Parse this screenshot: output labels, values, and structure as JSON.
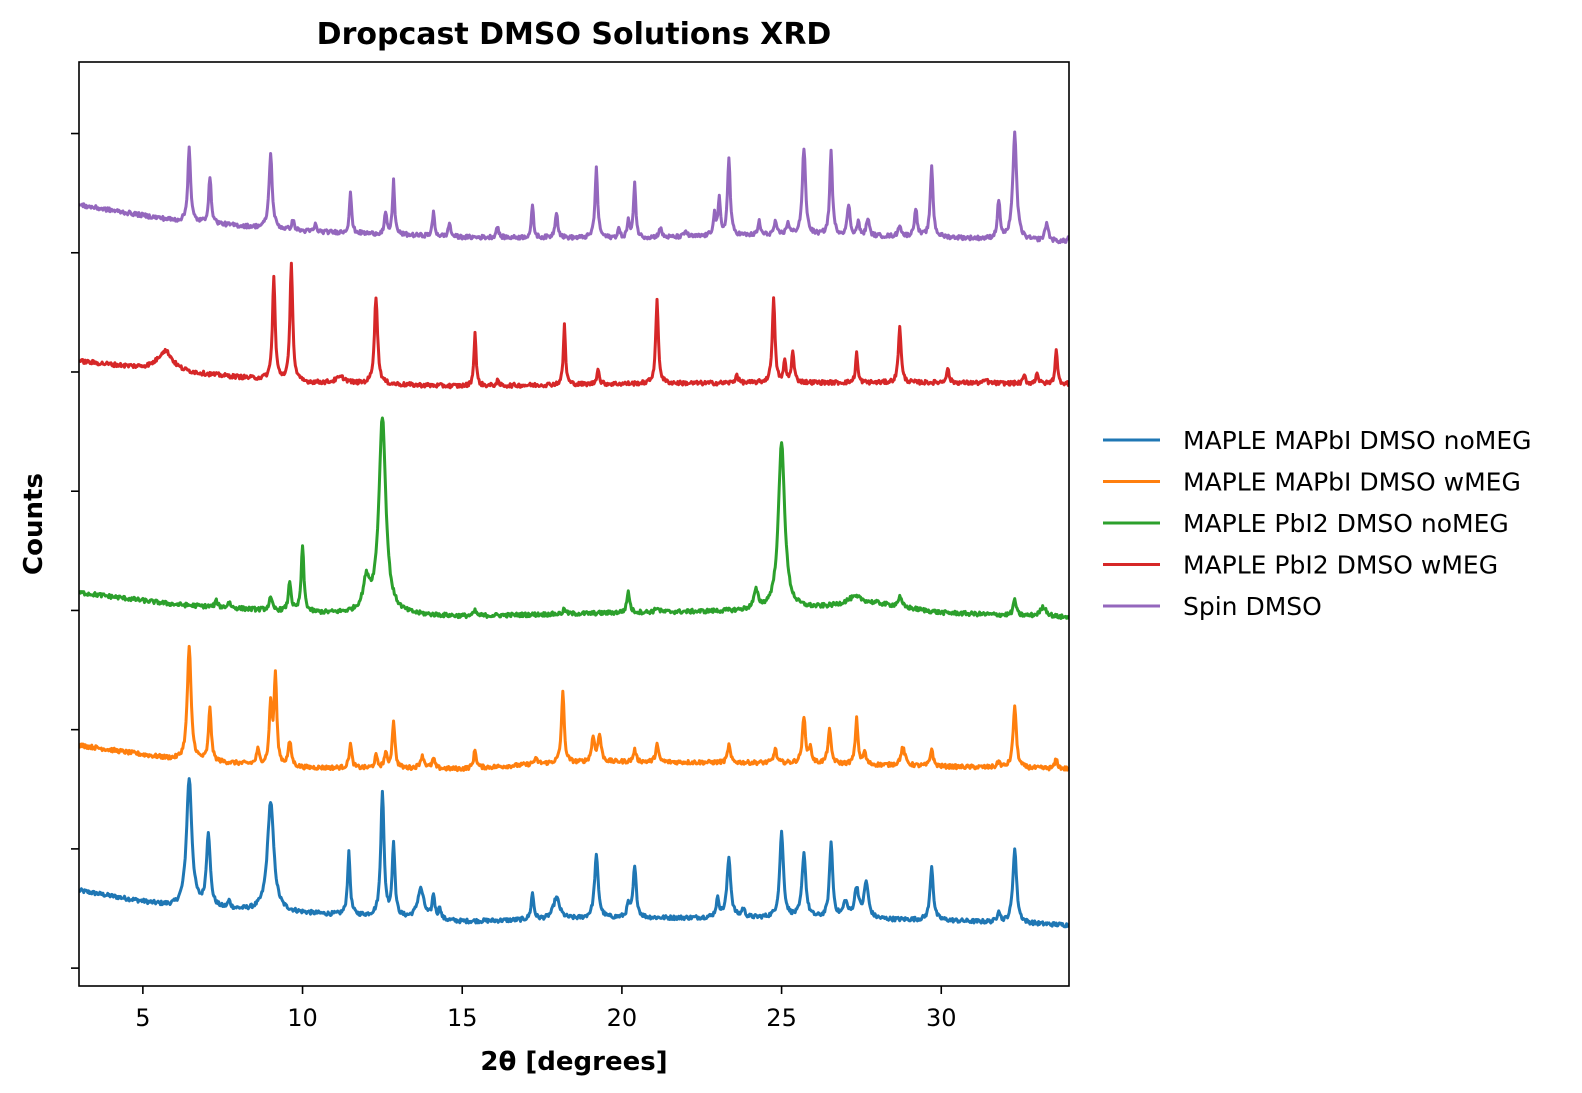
{
  "chart_data": {
    "type": "line",
    "title": "Dropcast DMSO Solutions XRD",
    "xlabel": "2θ [degrees]",
    "ylabel": "Counts",
    "xlim": [
      3,
      34
    ],
    "ylim": [
      -0.15,
      7.6
    ],
    "x_ticks": [
      5,
      10,
      15,
      20,
      25,
      30
    ],
    "y_ticks": [
      0,
      1,
      2,
      3,
      4,
      5,
      6,
      7
    ],
    "y_tick_labels_visible": false,
    "grid": false,
    "legend_position": "right, outside plot",
    "series": [
      {
        "name": "MAPLE MAPbI DMSO noMEG",
        "color": "#1f77b4",
        "offset": 0.55,
        "baseline": [
          [
            3,
            0.1
          ],
          [
            6,
            -0.04
          ],
          [
            10,
            -0.09
          ],
          [
            15,
            -0.16
          ],
          [
            20,
            -0.13
          ],
          [
            25,
            -0.13
          ],
          [
            30,
            -0.15
          ],
          [
            34,
            -0.19
          ]
        ],
        "peaks": [
          [
            6.45,
            1.08,
            0.1
          ],
          [
            7.05,
            0.62,
            0.07
          ],
          [
            7.7,
            0.06,
            0.05
          ],
          [
            9.0,
            0.92,
            0.12
          ],
          [
            11.45,
            0.52,
            0.05
          ],
          [
            12.5,
            1.05,
            0.06
          ],
          [
            12.85,
            0.62,
            0.05
          ],
          [
            13.7,
            0.25,
            0.12
          ],
          [
            14.1,
            0.2,
            0.05
          ],
          [
            14.3,
            0.1,
            0.04
          ],
          [
            17.2,
            0.22,
            0.05
          ],
          [
            17.95,
            0.18,
            0.12
          ],
          [
            19.2,
            0.52,
            0.07
          ],
          [
            20.2,
            0.1,
            0.05
          ],
          [
            20.4,
            0.42,
            0.06
          ],
          [
            23.0,
            0.15,
            0.06
          ],
          [
            23.35,
            0.5,
            0.07
          ],
          [
            23.8,
            0.07,
            0.06
          ],
          [
            25.0,
            0.71,
            0.07
          ],
          [
            25.7,
            0.54,
            0.07
          ],
          [
            26.55,
            0.63,
            0.06
          ],
          [
            27.0,
            0.13,
            0.08
          ],
          [
            27.35,
            0.25,
            0.08
          ],
          [
            27.65,
            0.3,
            0.08
          ],
          [
            29.7,
            0.45,
            0.06
          ],
          [
            31.8,
            0.1,
            0.05
          ],
          [
            32.3,
            0.62,
            0.07
          ]
        ]
      },
      {
        "name": "MAPLE MAPbI DMSO wMEG",
        "color": "#ff7f0e",
        "offset": 1.75,
        "baseline": [
          [
            3,
            0.12
          ],
          [
            6,
            0.0
          ],
          [
            10,
            -0.07
          ],
          [
            15,
            -0.08
          ],
          [
            18,
            -0.03
          ],
          [
            20,
            -0.02
          ],
          [
            25,
            -0.03
          ],
          [
            30,
            -0.06
          ],
          [
            34,
            -0.08
          ]
        ],
        "peaks": [
          [
            6.45,
            0.95,
            0.07
          ],
          [
            7.1,
            0.45,
            0.05
          ],
          [
            8.6,
            0.12,
            0.05
          ],
          [
            9.0,
            0.5,
            0.05
          ],
          [
            9.15,
            0.75,
            0.05
          ],
          [
            9.6,
            0.2,
            0.06
          ],
          [
            11.5,
            0.2,
            0.05
          ],
          [
            12.3,
            0.1,
            0.05
          ],
          [
            12.6,
            0.12,
            0.05
          ],
          [
            12.85,
            0.4,
            0.05
          ],
          [
            13.75,
            0.1,
            0.08
          ],
          [
            14.1,
            0.08,
            0.05
          ],
          [
            15.4,
            0.15,
            0.05
          ],
          [
            17.3,
            0.04,
            0.08
          ],
          [
            18.15,
            0.6,
            0.05
          ],
          [
            19.1,
            0.2,
            0.06
          ],
          [
            19.3,
            0.22,
            0.06
          ],
          [
            20.4,
            0.1,
            0.05
          ],
          [
            21.1,
            0.15,
            0.05
          ],
          [
            23.35,
            0.15,
            0.05
          ],
          [
            24.8,
            0.12,
            0.05
          ],
          [
            25.7,
            0.38,
            0.06
          ],
          [
            25.9,
            0.12,
            0.05
          ],
          [
            26.5,
            0.28,
            0.06
          ],
          [
            27.35,
            0.38,
            0.05
          ],
          [
            27.6,
            0.1,
            0.05
          ],
          [
            28.8,
            0.15,
            0.08
          ],
          [
            29.7,
            0.15,
            0.05
          ],
          [
            31.8,
            0.05,
            0.05
          ],
          [
            32.3,
            0.52,
            0.06
          ],
          [
            33.6,
            0.08,
            0.05
          ]
        ]
      },
      {
        "name": "MAPLE PbI2 DMSO noMEG",
        "color": "#2ca02c",
        "offset": 3.0,
        "baseline": [
          [
            3,
            0.15
          ],
          [
            6,
            0.05
          ],
          [
            10,
            -0.02
          ],
          [
            15,
            -0.05
          ],
          [
            20,
            -0.02
          ],
          [
            25,
            0.0
          ],
          [
            28,
            0.05
          ],
          [
            30,
            -0.02
          ],
          [
            34,
            -0.06
          ]
        ],
        "peaks": [
          [
            7.3,
            0.05,
            0.05
          ],
          [
            7.7,
            0.05,
            0.05
          ],
          [
            9.0,
            0.1,
            0.06
          ],
          [
            9.6,
            0.25,
            0.05
          ],
          [
            10.0,
            0.55,
            0.05
          ],
          [
            12.0,
            0.25,
            0.12
          ],
          [
            12.5,
            1.65,
            0.13
          ],
          [
            15.4,
            0.04,
            0.05
          ],
          [
            18.2,
            0.04,
            0.05
          ],
          [
            20.2,
            0.18,
            0.05
          ],
          [
            21.1,
            0.04,
            0.06
          ],
          [
            24.2,
            0.15,
            0.08
          ],
          [
            25.0,
            1.4,
            0.12
          ],
          [
            27.3,
            0.07,
            0.35
          ],
          [
            28.7,
            0.08,
            0.07
          ],
          [
            32.3,
            0.14,
            0.05
          ],
          [
            33.2,
            0.08,
            0.12
          ]
        ]
      },
      {
        "name": "MAPLE PbI2 DMSO wMEG",
        "color": "#d62728",
        "offset": 4.95,
        "baseline": [
          [
            3,
            0.14
          ],
          [
            6,
            0.05
          ],
          [
            10,
            -0.04
          ],
          [
            15,
            -0.07
          ],
          [
            20,
            -0.05
          ],
          [
            25,
            -0.04
          ],
          [
            30,
            -0.04
          ],
          [
            34,
            -0.05
          ]
        ],
        "peaks": [
          [
            5.7,
            0.17,
            0.28
          ],
          [
            9.1,
            0.86,
            0.05
          ],
          [
            9.65,
            1.0,
            0.05
          ],
          [
            11.2,
            0.05,
            0.2
          ],
          [
            12.3,
            0.73,
            0.06
          ],
          [
            15.4,
            0.45,
            0.04
          ],
          [
            16.1,
            0.04,
            0.04
          ],
          [
            18.2,
            0.5,
            0.04
          ],
          [
            19.25,
            0.14,
            0.04
          ],
          [
            21.1,
            0.69,
            0.05
          ],
          [
            23.6,
            0.07,
            0.05
          ],
          [
            24.75,
            0.71,
            0.05
          ],
          [
            25.1,
            0.18,
            0.04
          ],
          [
            25.35,
            0.25,
            0.05
          ],
          [
            27.35,
            0.25,
            0.04
          ],
          [
            28.7,
            0.48,
            0.05
          ],
          [
            30.2,
            0.12,
            0.05
          ],
          [
            31.4,
            0.03,
            0.05
          ],
          [
            32.6,
            0.07,
            0.04
          ],
          [
            33.0,
            0.1,
            0.04
          ],
          [
            33.6,
            0.3,
            0.04
          ]
        ]
      },
      {
        "name": "Spin DMSO",
        "color": "#9467bd",
        "offset": 6.25,
        "baseline": [
          [
            3,
            0.15
          ],
          [
            6,
            0.02
          ],
          [
            10,
            -0.07
          ],
          [
            15,
            -0.12
          ],
          [
            20,
            -0.13
          ],
          [
            25,
            -0.1
          ],
          [
            30,
            -0.12
          ],
          [
            34,
            -0.16
          ]
        ],
        "peaks": [
          [
            6.45,
            0.63,
            0.05
          ],
          [
            7.1,
            0.38,
            0.05
          ],
          [
            9.0,
            0.62,
            0.06
          ],
          [
            9.7,
            0.08,
            0.05
          ],
          [
            10.4,
            0.06,
            0.04
          ],
          [
            11.5,
            0.35,
            0.04
          ],
          [
            12.6,
            0.18,
            0.04
          ],
          [
            12.85,
            0.45,
            0.04
          ],
          [
            14.1,
            0.2,
            0.04
          ],
          [
            14.6,
            0.12,
            0.04
          ],
          [
            16.1,
            0.1,
            0.04
          ],
          [
            17.2,
            0.27,
            0.04
          ],
          [
            17.95,
            0.22,
            0.05
          ],
          [
            19.2,
            0.58,
            0.05
          ],
          [
            19.9,
            0.08,
            0.04
          ],
          [
            20.2,
            0.15,
            0.04
          ],
          [
            20.4,
            0.48,
            0.04
          ],
          [
            21.2,
            0.08,
            0.05
          ],
          [
            22.0,
            0.05,
            0.05
          ],
          [
            22.9,
            0.18,
            0.05
          ],
          [
            23.05,
            0.3,
            0.04
          ],
          [
            23.35,
            0.65,
            0.05
          ],
          [
            24.3,
            0.12,
            0.04
          ],
          [
            24.8,
            0.1,
            0.05
          ],
          [
            25.2,
            0.1,
            0.05
          ],
          [
            25.7,
            0.73,
            0.06
          ],
          [
            26.55,
            0.7,
            0.05
          ],
          [
            27.1,
            0.26,
            0.05
          ],
          [
            27.4,
            0.12,
            0.04
          ],
          [
            27.7,
            0.15,
            0.05
          ],
          [
            28.7,
            0.1,
            0.05
          ],
          [
            29.2,
            0.24,
            0.05
          ],
          [
            29.7,
            0.6,
            0.05
          ],
          [
            31.8,
            0.32,
            0.05
          ],
          [
            32.3,
            0.9,
            0.07
          ],
          [
            33.3,
            0.15,
            0.06
          ],
          [
            34.0,
            0.05,
            0.04
          ]
        ]
      }
    ]
  }
}
